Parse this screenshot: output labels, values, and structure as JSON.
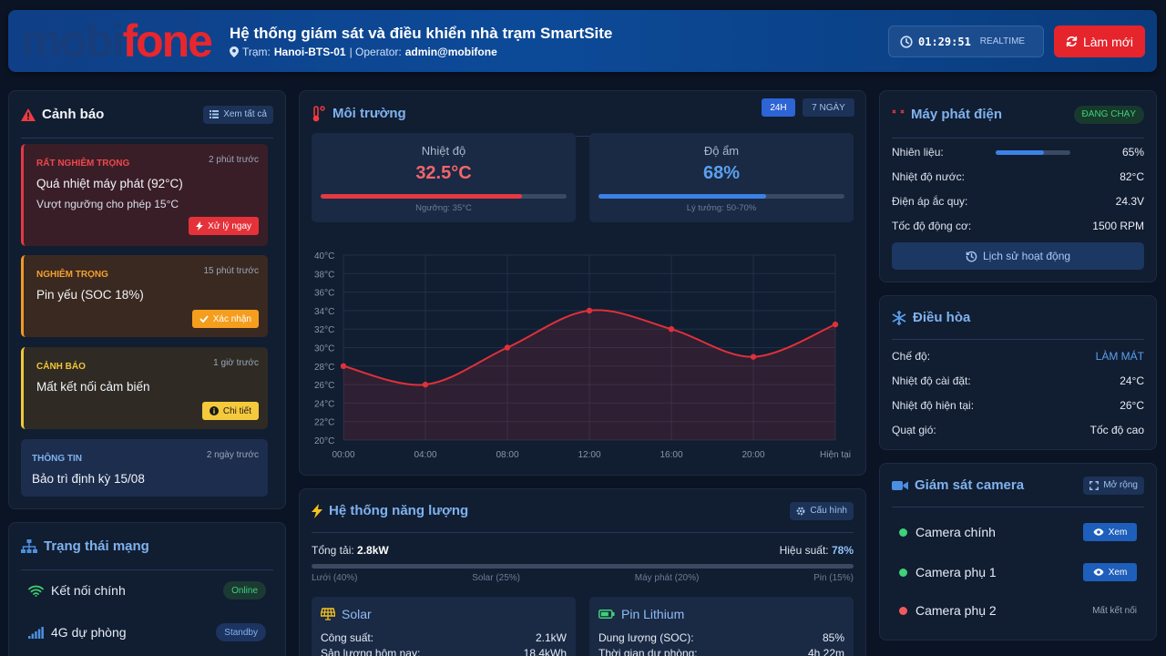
{
  "header": {
    "logo_left": "mobi",
    "logo_right": "fone",
    "title": "Hệ thống giám sát và điều khiển nhà trạm SmartSite",
    "station_label": "Trạm:",
    "station": "Hanoi-BTS-01",
    "operator_label": "| Operator:",
    "operator": "admin@mobifone",
    "clock": "01:29:51",
    "clock_mode": "REALTIME",
    "refresh_label": "Làm mới"
  },
  "alerts": {
    "title": "Cảnh báo",
    "view_all": "Xem tất cả",
    "items": [
      {
        "level": "RẤT NGHIÊM TRỌNG",
        "ago": "2 phút trước",
        "message": "Quá nhiệt máy phát (92°C)",
        "desc": "Vượt ngưỡng cho phép 15°C",
        "action": "Xử lý ngay"
      },
      {
        "level": "NGHIÊM TRỌNG",
        "ago": "15 phút trước",
        "message": "Pin yếu (SOC 18%)",
        "action": "Xác nhận"
      },
      {
        "level": "CẢNH BÁO",
        "ago": "1 giờ trước",
        "message": "Mất kết nối cảm biến",
        "action": "Chi tiết"
      },
      {
        "level": "THÔNG TIN",
        "ago": "2 ngày trước",
        "message": "Bảo trì định kỳ 15/08"
      }
    ]
  },
  "network": {
    "title": "Trạng thái mạng",
    "items": [
      {
        "label": "Kết nối chính",
        "status": "Online"
      },
      {
        "label": "4G dự phòng",
        "status": "Standby"
      }
    ]
  },
  "environment": {
    "title": "Môi trường",
    "range_24h": "24H",
    "range_7d": "7 NGÀY",
    "temperature": {
      "label": "Nhiệt độ",
      "value": "32.5°C",
      "fill_pct": 82,
      "note": "Ngưỡng: 35°C"
    },
    "humidity": {
      "label": "Độ ẩm",
      "value": "68%",
      "fill_pct": 68,
      "note": "Lý tưởng: 50-70%"
    }
  },
  "chart_data": {
    "type": "line",
    "title": "",
    "xlabel": "",
    "ylabel": "",
    "categories": [
      "00:00",
      "04:00",
      "08:00",
      "12:00",
      "16:00",
      "20:00",
      "Hiện tại"
    ],
    "series": [
      {
        "name": "Nhiệt độ",
        "values": [
          28,
          26,
          30,
          34,
          32,
          29,
          32.5
        ]
      }
    ],
    "ylim": [
      20,
      40
    ],
    "yticks": [
      20,
      22,
      24,
      26,
      28,
      30,
      32,
      34,
      36,
      38,
      40
    ],
    "ytick_labels": [
      "20°C",
      "22°C",
      "24°C",
      "26°C",
      "28°C",
      "30°C",
      "32°C",
      "34°C",
      "36°C",
      "38°C",
      "40°C"
    ],
    "grid": true,
    "line_color": "#e0303a"
  },
  "energy": {
    "title": "Hệ thống năng lượng",
    "config": "Cấu hình",
    "total_label": "Tổng tải:",
    "total": "2.8kW",
    "eff_label": "Hiệu suất:",
    "efficiency": "78%",
    "efficiency_pct": 78,
    "sources": [
      "Lưới (40%)",
      "Solar (25%)",
      "Máy phát (20%)",
      "Pin (15%)"
    ],
    "solar": {
      "title": "Solar",
      "rows": [
        {
          "k": "Công suất:",
          "v": "2.1kW"
        },
        {
          "k": "Sản lượng hôm nay:",
          "v": "18.4kWh"
        }
      ]
    },
    "battery": {
      "title": "Pin Lithium",
      "rows": [
        {
          "k": "Dung lượng (SOC):",
          "v": "85%"
        },
        {
          "k": "Thời gian dự phòng:",
          "v": "4h 22m"
        }
      ]
    }
  },
  "generator": {
    "title": "Máy phát điện",
    "status": "ĐANG CHẠY",
    "fuel_label": "Nhiên liệu:",
    "fuel": "65%",
    "fuel_pct": 65,
    "rows": [
      {
        "k": "Nhiệt độ nước:",
        "v": "82°C"
      },
      {
        "k": "Điện áp ắc quy:",
        "v": "24.3V"
      },
      {
        "k": "Tốc độ động cơ:",
        "v": "1500 RPM"
      }
    ],
    "history": "Lịch sử hoạt động"
  },
  "ac": {
    "title": "Điều hòa",
    "rows": [
      {
        "k": "Chế độ:",
        "v": "LÀM MÁT"
      },
      {
        "k": "Nhiệt độ cài đặt:",
        "v": "24°C"
      },
      {
        "k": "Nhiệt độ hiện tại:",
        "v": "26°C"
      },
      {
        "k": "Quạt gió:",
        "v": "Tốc độ cao"
      }
    ]
  },
  "camera": {
    "title": "Giám sát camera",
    "expand": "Mở rộng",
    "view": "Xem",
    "items": [
      {
        "name": "Camera chính",
        "status": "online"
      },
      {
        "name": "Camera phụ 1",
        "status": "online"
      },
      {
        "name": "Camera phụ 2",
        "status": "Mất kết nối"
      }
    ]
  }
}
